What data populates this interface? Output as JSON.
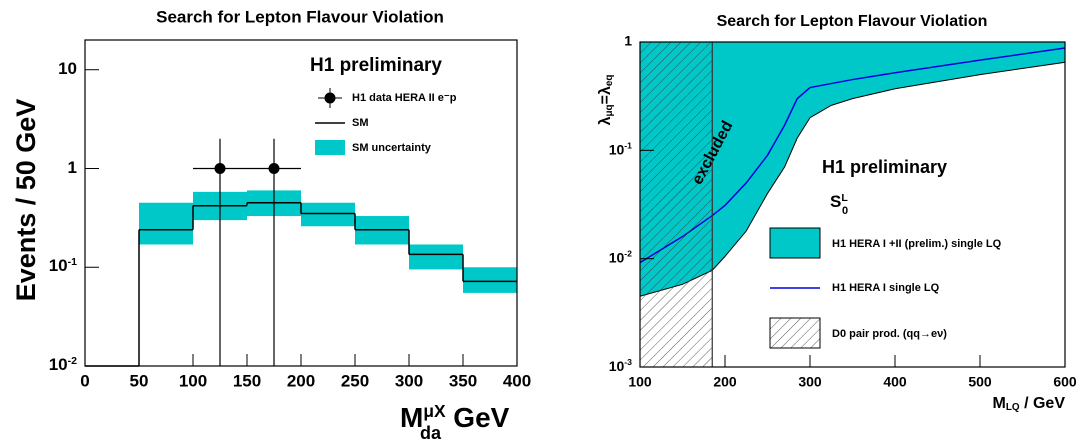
{
  "chart_data": [
    {
      "type": "histogram",
      "title": "Search for Lepton Flavour Violation",
      "y_label": "Events / 50 GeV",
      "x_label": {
        "main": "M",
        "sup": "μX",
        "sub": "da",
        "unit": " GeV"
      },
      "annotation": "H1 preliminary",
      "log_y": true,
      "xlim": [
        0,
        400
      ],
      "ylim": [
        0.01,
        20
      ],
      "xticks": [
        0,
        50,
        100,
        150,
        200,
        250,
        300,
        350,
        400
      ],
      "yticks": [
        {
          "value": 0.01,
          "label": "10",
          "sup": "-2"
        },
        {
          "value": 0.1,
          "label": "10",
          "sup": "-1"
        },
        1,
        10
      ],
      "bins": [
        0,
        50,
        100,
        150,
        200,
        250,
        300,
        350,
        400
      ],
      "series": [
        {
          "name": "SM",
          "color": "#000000",
          "values": [
            0,
            0.24,
            0.42,
            0.45,
            0.35,
            0.24,
            0.135,
            0.072
          ]
        },
        {
          "name": "SM uncertainty",
          "color": "#00c8c8",
          "low": [
            null,
            0.17,
            0.3,
            0.33,
            0.26,
            0.17,
            0.095,
            0.055
          ],
          "high": [
            null,
            0.45,
            0.58,
            0.6,
            0.45,
            0.33,
            0.17,
            0.1
          ]
        }
      ],
      "data": {
        "name": "H1 data HERA II e⁻p",
        "color": "#000000",
        "x": [
          125,
          175
        ],
        "xerr": [
          25,
          25
        ],
        "values": [
          1,
          1
        ],
        "errors": [
          1,
          1
        ]
      }
    },
    {
      "type": "exclusion",
      "title": "Search for Lepton Flavour Violation",
      "y_label": {
        "parts": [
          "λ",
          "μq",
          "=λ",
          "eq"
        ]
      },
      "x_label": {
        "parts": [
          "M",
          "LQ",
          " / GeV"
        ]
      },
      "annotation": "H1 preliminary",
      "scalar": {
        "main": "S",
        "sub": "0",
        "sup": "L"
      },
      "excluded_label": "excluded",
      "log_y": true,
      "xlim": [
        100,
        600
      ],
      "ylim": [
        0.001,
        1
      ],
      "xticks": [
        100,
        200,
        300,
        400,
        500,
        600
      ],
      "yticks": [
        {
          "value": 0.001,
          "label": "10",
          "sup": "-3"
        },
        {
          "value": 0.01,
          "label": "10",
          "sup": "-2"
        },
        {
          "value": 0.1,
          "label": "10",
          "sup": "-1"
        },
        1
      ],
      "series": [
        {
          "name": "H1 HERA I +II (prelim.) single LQ",
          "color": "#00c8c8",
          "x": [
            100,
            150,
            185,
            200,
            225,
            250,
            270,
            285,
            300,
            325,
            350,
            400,
            500,
            600
          ],
          "values": [
            0.0045,
            0.0058,
            0.0078,
            0.0105,
            0.018,
            0.04,
            0.07,
            0.13,
            0.2,
            0.26,
            0.3,
            0.37,
            0.5,
            0.65
          ]
        },
        {
          "name": "H1 HERA I single LQ",
          "color": "#0000dd",
          "x": [
            100,
            150,
            185,
            200,
            225,
            250,
            270,
            285,
            300,
            350,
            400,
            500,
            600
          ],
          "values": [
            0.0092,
            0.016,
            0.025,
            0.031,
            0.05,
            0.09,
            0.17,
            0.3,
            0.38,
            0.45,
            0.52,
            0.68,
            0.88
          ]
        },
        {
          "name": "D0 pair prod. (qq→eν)",
          "color": "#333333",
          "limit_x": 185
        }
      ]
    }
  ]
}
